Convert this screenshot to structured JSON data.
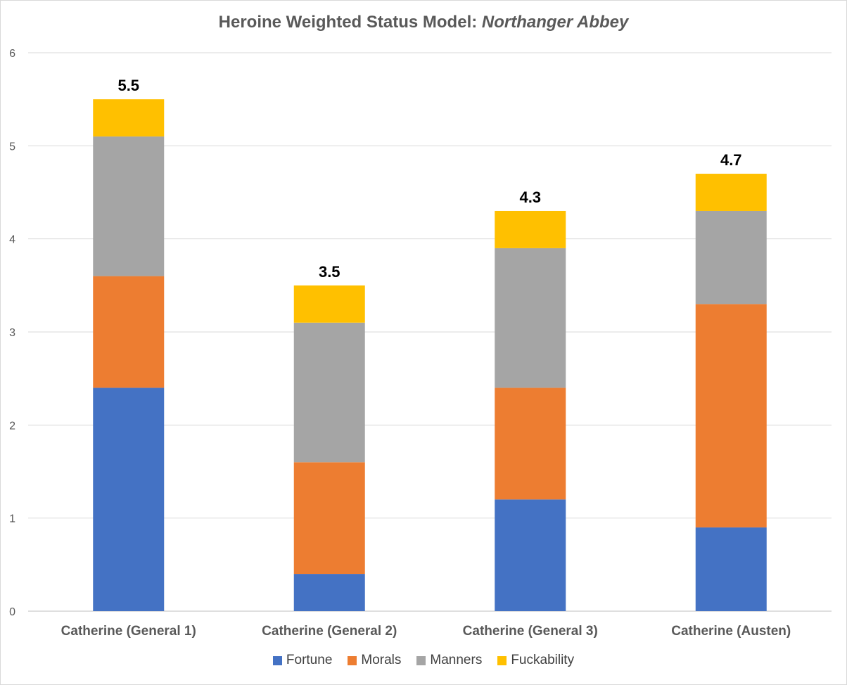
{
  "chart_data": {
    "type": "bar",
    "stacked": true,
    "title": "Heroine Weighted Status Model: ",
    "title_italic": "Northanger Abbey",
    "categories": [
      "Catherine (General 1)",
      "Catherine (General 2)",
      "Catherine (General 3)",
      "Catherine (Austen)"
    ],
    "series": [
      {
        "name": "Fortune",
        "color": "#4472c4",
        "values": [
          2.4,
          0.4,
          1.2,
          0.9
        ]
      },
      {
        "name": "Morals",
        "color": "#ed7d31",
        "values": [
          1.2,
          1.2,
          1.2,
          2.4
        ]
      },
      {
        "name": "Manners",
        "color": "#a5a5a5",
        "values": [
          1.5,
          1.5,
          1.5,
          1.0
        ]
      },
      {
        "name": "Fuckability",
        "color": "#ffc000",
        "values": [
          0.4,
          0.4,
          0.4,
          0.4
        ]
      }
    ],
    "totals": [
      "5.5",
      "3.5",
      "4.3",
      "4.7"
    ],
    "ylim": [
      0,
      6
    ],
    "yticks": [
      "0",
      "1",
      "2",
      "3",
      "4",
      "5",
      "6"
    ],
    "grid": true,
    "legend_position": "bottom"
  }
}
